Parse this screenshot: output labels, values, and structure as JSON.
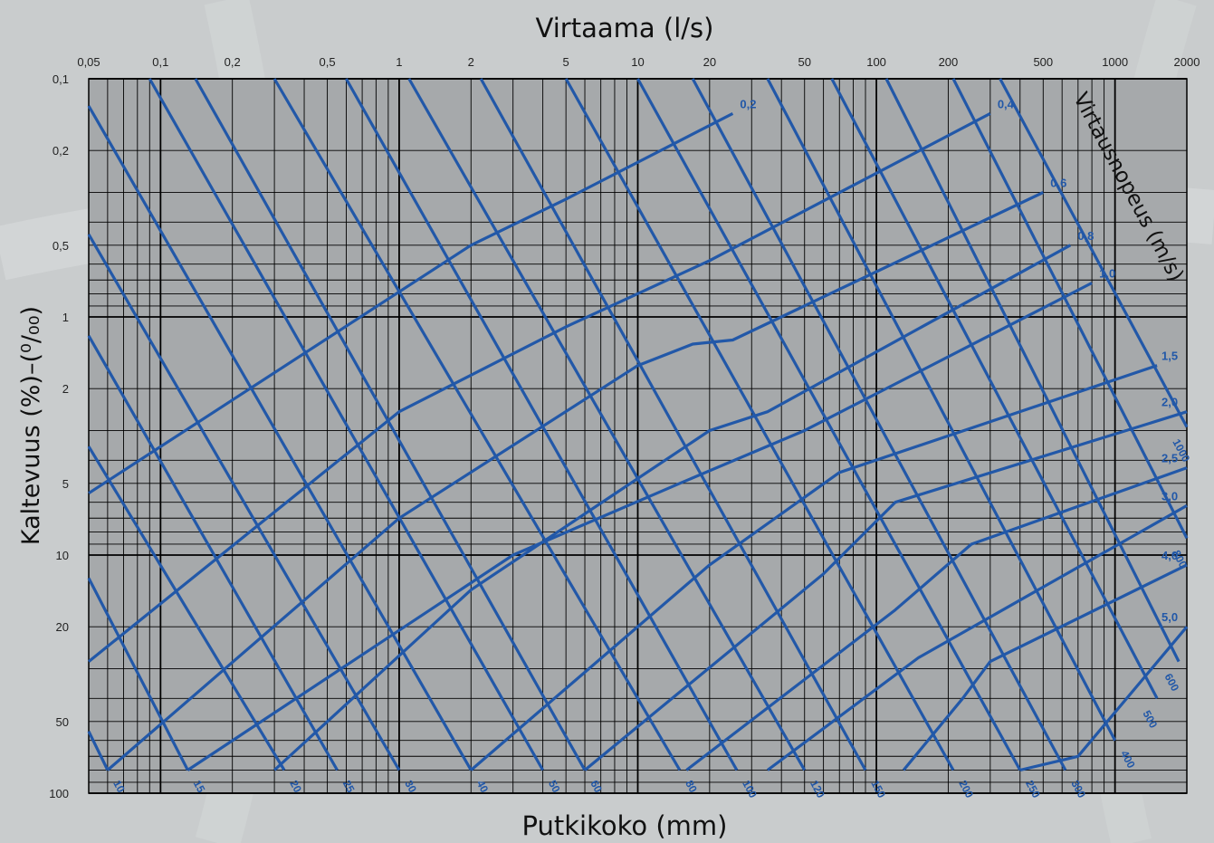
{
  "chart_data": {
    "type": "line",
    "title": "",
    "top_axis_label": "Virtaama (l/s)",
    "bottom_axis_label": "Putkikoko (mm)",
    "left_axis_label": "Kaltevuus (%)–(⁰/₀₀)",
    "velocity_axis_label": "Virtausnopeus (m/s)",
    "x_scale": "log",
    "y_scale": "log",
    "x_range": [
      0.05,
      2000
    ],
    "y_range": [
      0.1,
      100
    ],
    "y_reversed": true,
    "grid": true,
    "x_ticks": [
      {
        "value": 0.05,
        "label": "0,05"
      },
      {
        "value": 0.1,
        "label": "0,1"
      },
      {
        "value": 0.2,
        "label": "0,2"
      },
      {
        "value": 0.5,
        "label": "0,5"
      },
      {
        "value": 1,
        "label": "1"
      },
      {
        "value": 2,
        "label": "2"
      },
      {
        "value": 5,
        "label": "5"
      },
      {
        "value": 10,
        "label": "10"
      },
      {
        "value": 20,
        "label": "20"
      },
      {
        "value": 50,
        "label": "50"
      },
      {
        "value": 100,
        "label": "100"
      },
      {
        "value": 200,
        "label": "200"
      },
      {
        "value": 500,
        "label": "500"
      },
      {
        "value": 1000,
        "label": "1000"
      },
      {
        "value": 2000,
        "label": "2000"
      }
    ],
    "y_ticks": [
      {
        "value": 0.1,
        "label": "0,1"
      },
      {
        "value": 0.2,
        "label": "0,2"
      },
      {
        "value": 0.5,
        "label": "0,5"
      },
      {
        "value": 1,
        "label": "1"
      },
      {
        "value": 2,
        "label": "2"
      },
      {
        "value": 5,
        "label": "5"
      },
      {
        "value": 10,
        "label": "10"
      },
      {
        "value": 20,
        "label": "20"
      },
      {
        "value": 50,
        "label": "50"
      },
      {
        "value": 100,
        "label": "100"
      }
    ],
    "line_color": "#2258a8",
    "grid_color": "#000000",
    "plot_background": "#a6a9ab",
    "pipe_sizes": [
      {
        "label": "10",
        "start": [
          0.05,
          55
        ],
        "end": [
          0.06,
          80
        ]
      },
      {
        "label": "15",
        "start": [
          0.05,
          12.5
        ],
        "end": [
          0.13,
          80
        ]
      },
      {
        "label": "20",
        "start": [
          0.05,
          3.5
        ],
        "end": [
          0.33,
          80
        ]
      },
      {
        "label": "25",
        "start": [
          0.05,
          1.2
        ],
        "end": [
          0.55,
          80
        ]
      },
      {
        "label": "30",
        "start": [
          0.05,
          0.45
        ],
        "end": [
          1.0,
          80
        ]
      },
      {
        "label": "40",
        "start": [
          0.05,
          0.13
        ],
        "end": [
          2.0,
          80
        ]
      },
      {
        "label": "50",
        "start": [
          0.09,
          0.1
        ],
        "end": [
          4.0,
          80
        ]
      },
      {
        "label": "60",
        "start": [
          0.14,
          0.1
        ],
        "end": [
          6.0,
          80
        ]
      },
      {
        "label": "80",
        "start": [
          0.3,
          0.1
        ],
        "end": [
          15.0,
          80
        ]
      },
      {
        "label": "100",
        "start": [
          0.6,
          0.1
        ],
        "end": [
          26.0,
          80
        ]
      },
      {
        "label": "120",
        "start": [
          1.1,
          0.1
        ],
        "end": [
          50.0,
          80
        ]
      },
      {
        "label": "150",
        "start": [
          2.2,
          0.1
        ],
        "end": [
          90.0,
          80
        ]
      },
      {
        "label": "200",
        "start": [
          5.0,
          0.1
        ],
        "end": [
          210.0,
          80
        ]
      },
      {
        "label": "250",
        "start": [
          10.0,
          0.1
        ],
        "end": [
          400.0,
          80
        ]
      },
      {
        "label": "300",
        "start": [
          17.0,
          0.1
        ],
        "end": [
          620.0,
          80
        ]
      },
      {
        "label": "400",
        "start": [
          35.0,
          0.1
        ],
        "end": [
          1000.0,
          60
        ]
      },
      {
        "label": "500",
        "start": [
          65.0,
          0.1
        ],
        "end": [
          1500.0,
          40
        ]
      },
      {
        "label": "600",
        "start": [
          110.0,
          0.1
        ],
        "end": [
          1850.0,
          28
        ]
      },
      {
        "label": "800",
        "start": [
          210.0,
          0.1
        ],
        "end": [
          2000.0,
          8.5
        ]
      },
      {
        "label": "1000",
        "start": [
          330.0,
          0.1
        ],
        "end": [
          2000.0,
          2.9
        ]
      }
    ],
    "velocities": [
      {
        "label": "0,2",
        "points": [
          [
            0.05,
            5.5
          ],
          [
            2.0,
            0.5
          ],
          [
            5.0,
            0.32
          ],
          [
            25.0,
            0.14
          ]
        ]
      },
      {
        "label": "0,4",
        "points": [
          [
            0.05,
            28.0
          ],
          [
            1.0,
            2.5
          ],
          [
            5.0,
            1.1
          ],
          [
            20.0,
            0.58
          ],
          [
            300.0,
            0.14
          ]
        ]
      },
      {
        "label": "0,6",
        "points": [
          [
            0.06,
            80.0
          ],
          [
            1.0,
            7.0
          ],
          [
            10.0,
            1.6
          ],
          [
            17.0,
            1.3
          ],
          [
            25.0,
            1.25
          ],
          [
            500.0,
            0.3
          ]
        ]
      },
      {
        "label": "0,8",
        "points": [
          [
            0.3,
            80.0
          ],
          [
            2.0,
            14.0
          ],
          [
            20.0,
            3.0
          ],
          [
            35.0,
            2.5
          ],
          [
            650.0,
            0.5
          ]
        ]
      },
      {
        "label": "1,0",
        "points": [
          [
            0.13,
            80.0
          ],
          [
            3.0,
            10.0
          ],
          [
            15.0,
            5.0
          ],
          [
            50.0,
            3.0
          ],
          [
            800.0,
            0.72
          ]
        ]
      },
      {
        "label": "1,5",
        "points": [
          [
            2.0,
            80.0
          ],
          [
            20.0,
            11.0
          ],
          [
            70.0,
            4.5
          ],
          [
            1500.0,
            1.6
          ]
        ]
      },
      {
        "label": "2,0",
        "points": [
          [
            6.0,
            80.0
          ],
          [
            60.0,
            12.0
          ],
          [
            120.0,
            6.0
          ],
          [
            2000.0,
            2.5
          ]
        ]
      },
      {
        "label": "2,5",
        "points": [
          [
            16.0,
            80.0
          ],
          [
            120.0,
            17.0
          ],
          [
            250.0,
            9.0
          ],
          [
            2000.0,
            4.3
          ]
        ]
      },
      {
        "label": "3,0",
        "points": [
          [
            35.0,
            80.0
          ],
          [
            150.0,
            27.0
          ],
          [
            2000.0,
            6.2
          ]
        ]
      },
      {
        "label": "4,0",
        "points": [
          [
            130.0,
            80.0
          ],
          [
            230.0,
            40.0
          ],
          [
            300.0,
            28.0
          ],
          [
            2000.0,
            11.0
          ]
        ]
      },
      {
        "label": "5,0",
        "points": [
          [
            400.0,
            80.0
          ],
          [
            700.0,
            70.0
          ],
          [
            2000.0,
            20.0
          ]
        ]
      }
    ]
  }
}
